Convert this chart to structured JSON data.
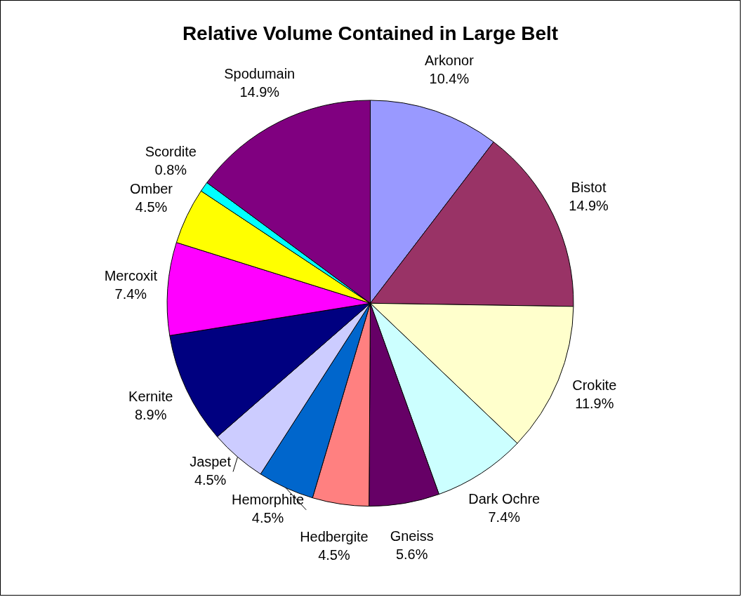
{
  "chart_data": {
    "type": "pie",
    "title": "Relative Volume Contained in Large Belt",
    "categories": [
      "Arkonor",
      "Bistot",
      "Crokite",
      "Dark Ochre",
      "Gneiss",
      "Hedbergite",
      "Hemorphite",
      "Jaspet",
      "Kernite",
      "Mercoxit",
      "Omber",
      "Scordite",
      "Spodumain"
    ],
    "values": [
      10.4,
      14.9,
      11.9,
      7.4,
      5.6,
      4.5,
      4.5,
      4.5,
      8.9,
      7.4,
      4.5,
      0.8,
      14.9
    ],
    "value_labels": [
      "10.4%",
      "14.9%",
      "11.9%",
      "7.4%",
      "5.6%",
      "4.5%",
      "4.5%",
      "4.5%",
      "8.9%",
      "7.4%",
      "4.5%",
      "0.8%",
      "14.9%"
    ],
    "colors": [
      "#9999ff",
      "#993366",
      "#ffffcc",
      "#ccffff",
      "#660066",
      "#ff8080",
      "#0066cc",
      "#ccccff",
      "#000080",
      "#ff00ff",
      "#ffff00",
      "#00ffff",
      "#800080"
    ],
    "legend": false
  }
}
